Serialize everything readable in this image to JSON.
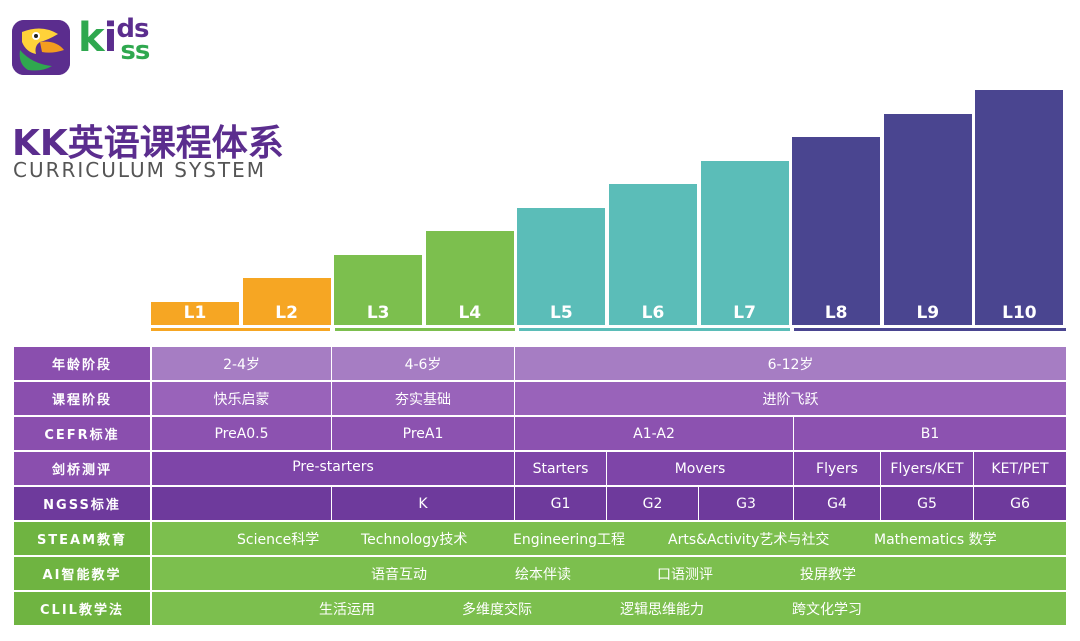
{
  "brand": {
    "logo_text_k": "k",
    "logo_text_i": "i",
    "logo_text_ds": "ds",
    "logo_text_ss": "ss"
  },
  "header": {
    "title": "KK英语课程体系",
    "subtitle": "CURRICULUM SYSTEM"
  },
  "levels": [
    {
      "label": "L1",
      "step": 1,
      "color": "#f6a623"
    },
    {
      "label": "L2",
      "step": 2,
      "color": "#f6a623"
    },
    {
      "label": "L3",
      "step": 3,
      "color": "#7cbf4e"
    },
    {
      "label": "L4",
      "step": 4,
      "color": "#7cbf4e"
    },
    {
      "label": "L5",
      "step": 5,
      "color": "#5bbdb8"
    },
    {
      "label": "L6",
      "step": 6,
      "color": "#5bbdb8"
    },
    {
      "label": "L7",
      "step": 7,
      "color": "#5bbdb8"
    },
    {
      "label": "L8",
      "step": 8,
      "color": "#4a4590"
    },
    {
      "label": "L9",
      "step": 9,
      "color": "#4a4590"
    },
    {
      "label": "L10",
      "step": 10,
      "color": "#4a4590"
    }
  ],
  "table": {
    "age": {
      "label": "年龄阶段",
      "values": [
        "2-4岁",
        "4-6岁",
        "6-12岁"
      ]
    },
    "stage": {
      "label": "课程阶段",
      "values": [
        "快乐启蒙",
        "夯实基础",
        "进阶飞跃"
      ]
    },
    "cefr": {
      "label": "CEFR标准",
      "values": [
        "PreA0.5",
        "PreA1",
        "A1-A2",
        "B1"
      ]
    },
    "cambridge": {
      "label": "剑桥测评",
      "values": [
        "Pre-starters",
        "Starters",
        "Movers",
        "Flyers",
        "Flyers/KET",
        "KET/PET"
      ]
    },
    "ngss": {
      "label": "NGSS标准",
      "values": [
        "K",
        "G1",
        "G2",
        "G3",
        "G4",
        "G5",
        "G6"
      ]
    },
    "steam": {
      "label": "STEAM教育",
      "values": [
        "Science科学",
        "Technology技术",
        "Engineering工程",
        "Arts&Activity艺术与社交",
        "Mathematics 数学"
      ]
    },
    "ai": {
      "label": "AI智能教学",
      "values": [
        "语音互动",
        "绘本伴读",
        "口语测评",
        "投屏教学"
      ]
    },
    "clil": {
      "label": "CLIL教学法",
      "values": [
        "生活运用",
        "多维度交际",
        "逻辑思维能力",
        "跨文化学习"
      ]
    }
  },
  "colors": {
    "purple_light": "#a67dc3",
    "purple_mid": "#9560b8",
    "purple_dark": "#7d3fa5",
    "green": "#7cbf4e",
    "head_purple": "#8a4fae"
  }
}
